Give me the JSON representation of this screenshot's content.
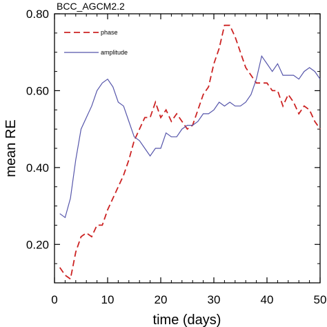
{
  "chart_data": {
    "type": "line",
    "title": "BCC_AGCM2.2",
    "xlabel": "time (days)",
    "ylabel": "mean RE",
    "xlim": [
      0,
      50
    ],
    "ylim": [
      0.1,
      0.8
    ],
    "xticks": [
      0,
      10,
      20,
      30,
      40,
      50
    ],
    "yticks": [
      0.2,
      0.4,
      0.6,
      0.8
    ],
    "xtick_labels": [
      "0",
      "10",
      "20",
      "30",
      "40",
      "50"
    ],
    "ytick_labels": [
      "0.20",
      "0.40",
      "0.60",
      "0.80"
    ],
    "grid": false,
    "legend_position": "top-left",
    "series": [
      {
        "name": "phase",
        "color": "#cc2222",
        "dash": "dashed",
        "x": [
          1,
          2,
          3,
          4,
          5,
          6,
          7,
          8,
          9,
          10,
          11,
          12,
          13,
          14,
          15,
          16,
          17,
          18,
          19,
          20,
          21,
          22,
          23,
          24,
          25,
          26,
          27,
          28,
          29,
          30,
          31,
          32,
          33,
          34,
          35,
          36,
          37,
          38,
          39,
          40,
          41,
          42,
          43,
          44,
          45,
          46,
          47,
          48,
          49,
          50
        ],
        "values": [
          0.14,
          0.12,
          0.11,
          0.18,
          0.22,
          0.23,
          0.22,
          0.25,
          0.25,
          0.29,
          0.32,
          0.35,
          0.38,
          0.42,
          0.47,
          0.5,
          0.53,
          0.53,
          0.57,
          0.53,
          0.55,
          0.52,
          0.54,
          0.52,
          0.5,
          0.51,
          0.55,
          0.59,
          0.61,
          0.67,
          0.71,
          0.77,
          0.77,
          0.74,
          0.7,
          0.66,
          0.64,
          0.62,
          0.62,
          0.62,
          0.6,
          0.6,
          0.56,
          0.59,
          0.57,
          0.54,
          0.56,
          0.55,
          0.52,
          0.5
        ]
      },
      {
        "name": "amplitude",
        "color": "#5555aa",
        "dash": "solid",
        "x": [
          1,
          2,
          3,
          4,
          5,
          6,
          7,
          8,
          9,
          10,
          11,
          12,
          13,
          14,
          15,
          16,
          17,
          18,
          19,
          20,
          21,
          22,
          23,
          24,
          25,
          26,
          27,
          28,
          29,
          30,
          31,
          32,
          33,
          34,
          35,
          36,
          37,
          38,
          39,
          40,
          41,
          42,
          43,
          44,
          45,
          46,
          47,
          48,
          49,
          50
        ],
        "values": [
          0.28,
          0.27,
          0.32,
          0.42,
          0.5,
          0.53,
          0.56,
          0.6,
          0.62,
          0.63,
          0.61,
          0.57,
          0.56,
          0.52,
          0.48,
          0.47,
          0.45,
          0.43,
          0.45,
          0.45,
          0.49,
          0.48,
          0.48,
          0.5,
          0.51,
          0.51,
          0.52,
          0.54,
          0.54,
          0.55,
          0.57,
          0.56,
          0.57,
          0.56,
          0.56,
          0.57,
          0.59,
          0.63,
          0.69,
          0.67,
          0.65,
          0.67,
          0.64,
          0.64,
          0.64,
          0.63,
          0.65,
          0.66,
          0.65,
          0.63
        ]
      }
    ]
  }
}
